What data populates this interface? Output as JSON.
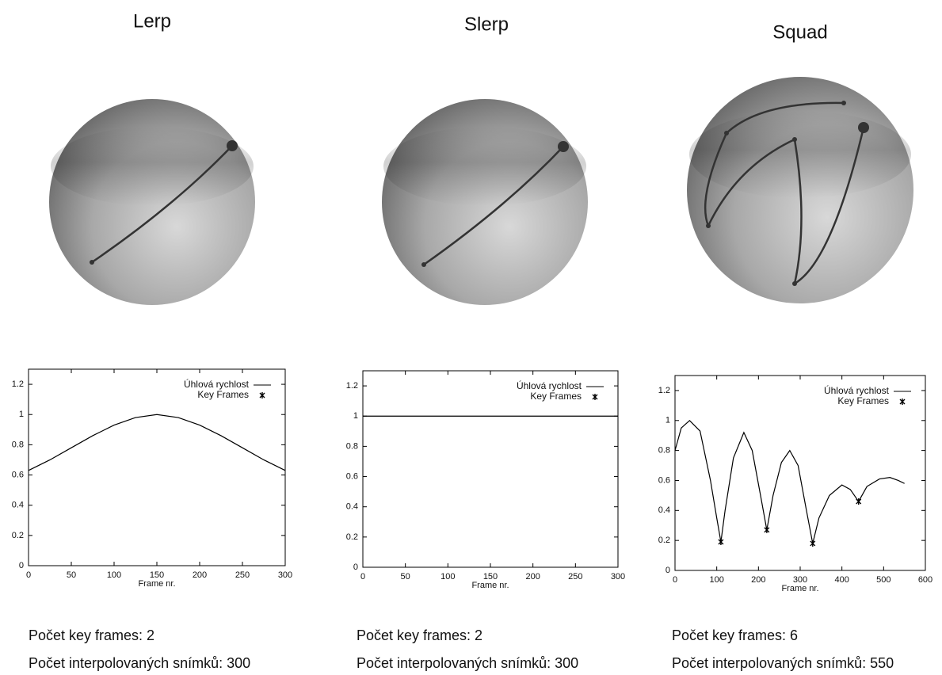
{
  "chart_data": [
    {
      "type": "line",
      "title": "Lerp",
      "xlabel": "Frame nr.",
      "xlim": [
        0,
        300
      ],
      "xticks": [
        0,
        50,
        100,
        150,
        200,
        250,
        300
      ],
      "ylim": [
        0,
        1.3
      ],
      "yticks": [
        0,
        0.2,
        0.4,
        0.6,
        0.8,
        1,
        1.2
      ],
      "series": [
        {
          "name": "Úhlová rychlost",
          "color": "#000000",
          "x": [
            0,
            25,
            50,
            75,
            100,
            125,
            150,
            175,
            200,
            225,
            250,
            275,
            300
          ],
          "values": [
            0.63,
            0.7,
            0.78,
            0.86,
            0.93,
            0.98,
            1,
            0.98,
            0.93,
            0.86,
            0.78,
            0.7,
            0.63
          ]
        },
        {
          "name": "Key Frames",
          "color": "#000000",
          "x": [],
          "values": []
        }
      ],
      "annotations": [
        "Počet key frames: 2",
        "Počet interpolovaných snímků: 300"
      ]
    },
    {
      "type": "line",
      "title": "Slerp",
      "xlabel": "Frame nr.",
      "xlim": [
        0,
        300
      ],
      "xticks": [
        0,
        50,
        100,
        150,
        200,
        250,
        300
      ],
      "ylim": [
        0,
        1.3
      ],
      "yticks": [
        0,
        0.2,
        0.4,
        0.6,
        0.8,
        1,
        1.2
      ],
      "series": [
        {
          "name": "Úhlová rychlost",
          "color": "#000000",
          "x": [
            0,
            300
          ],
          "values": [
            1,
            1
          ]
        },
        {
          "name": "Key Frames",
          "color": "#000000",
          "x": [],
          "values": []
        }
      ],
      "annotations": [
        "Počet key frames: 2",
        "Počet interpolovaných snímků: 300"
      ]
    },
    {
      "type": "line",
      "title": "Squad",
      "xlabel": "Frame nr.",
      "xlim": [
        0,
        600
      ],
      "xticks": [
        0,
        100,
        200,
        300,
        400,
        500,
        600
      ],
      "ylim": [
        0,
        1.3
      ],
      "yticks": [
        0,
        0.2,
        0.4,
        0.6,
        0.8,
        1,
        1.2
      ],
      "series": [
        {
          "name": "Úhlová rychlost",
          "color": "#000000",
          "x": [
            0,
            15,
            35,
            60,
            85,
            100,
            110,
            120,
            140,
            165,
            185,
            205,
            220,
            235,
            255,
            275,
            295,
            315,
            330,
            345,
            370,
            400,
            420,
            440,
            460,
            490,
            515,
            535,
            550
          ],
          "values": [
            0.8,
            0.95,
            1.0,
            0.93,
            0.6,
            0.35,
            0.19,
            0.4,
            0.75,
            0.92,
            0.8,
            0.5,
            0.27,
            0.5,
            0.72,
            0.8,
            0.7,
            0.4,
            0.18,
            0.35,
            0.5,
            0.57,
            0.54,
            0.46,
            0.56,
            0.61,
            0.62,
            0.6,
            0.58
          ]
        },
        {
          "name": "Key Frames",
          "color": "#000000",
          "x": [
            110,
            220,
            330,
            440
          ],
          "values": [
            0.19,
            0.27,
            0.18,
            0.46
          ]
        }
      ],
      "annotations": [
        "Počet key frames: 6",
        "Počet interpolovaných snímků: 550"
      ]
    }
  ]
}
